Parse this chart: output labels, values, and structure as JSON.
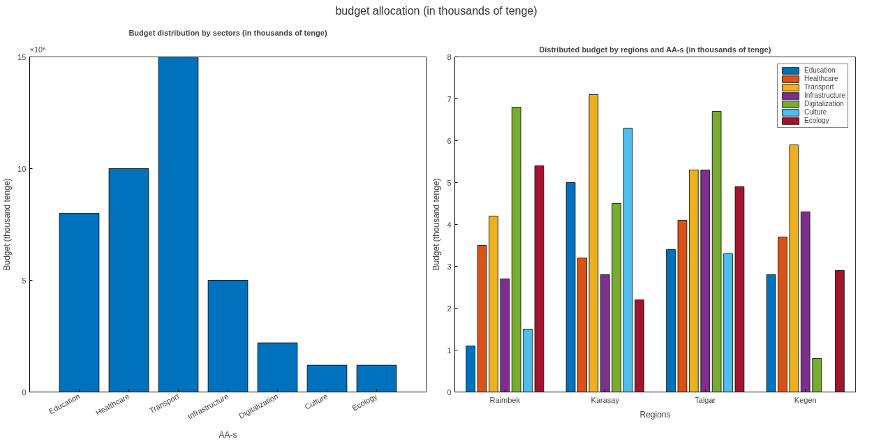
{
  "chart_data": [
    {
      "type": "bar",
      "title": "Budget distribution by sectors (in thousands of tenge)",
      "xlabel": "AA-s",
      "ylabel": "Budget (thousand tenge)",
      "categories": [
        "Education",
        "Healthcare",
        "Transport",
        "Infrastructure",
        "Digitalization",
        "Culture",
        "Ecology"
      ],
      "values": [
        8,
        10,
        15,
        5,
        2.2,
        1.2,
        1.2
      ],
      "color": "#0072bd",
      "ylim": [
        0,
        15
      ],
      "yticks": [
        0,
        5,
        10,
        15
      ],
      "annotations": [
        "budget allocation (in thousands of tenge)",
        "×10⁶"
      ],
      "grid": false
    },
    {
      "type": "bar",
      "title": "Distributed budget by regions and AA-s (in thousands of tenge)",
      "xlabel": "Regions",
      "ylabel": "Budget (thousand tenge)",
      "categories": [
        "Raimbek",
        "Karasay",
        "Talgar",
        "Kegen"
      ],
      "series": [
        {
          "name": "Education",
          "color": "#0072bd",
          "values": [
            1.1,
            5.0,
            3.4,
            2.8
          ]
        },
        {
          "name": "Healthcare",
          "color": "#d95319",
          "values": [
            3.5,
            3.2,
            4.1,
            3.7
          ]
        },
        {
          "name": "Transport",
          "color": "#edb120",
          "values": [
            4.2,
            7.1,
            5.3,
            5.9
          ]
        },
        {
          "name": "Infrastructure",
          "color": "#7e2f8e",
          "values": [
            2.7,
            2.8,
            5.3,
            4.3
          ]
        },
        {
          "name": "Digitalization",
          "color": "#77ac30",
          "values": [
            6.8,
            4.5,
            6.7,
            0.8
          ]
        },
        {
          "name": "Culture",
          "color": "#4dbeee",
          "values": [
            1.5,
            6.3,
            3.3,
            null
          ]
        },
        {
          "name": "Ecology",
          "color": "#a2142f",
          "values": [
            5.4,
            2.2,
            4.9,
            2.9
          ]
        }
      ],
      "ylim": [
        0,
        8
      ],
      "yticks": [
        0,
        1,
        2,
        3,
        4,
        5,
        6,
        7,
        8
      ],
      "grid": false,
      "legend": "top right"
    }
  ]
}
